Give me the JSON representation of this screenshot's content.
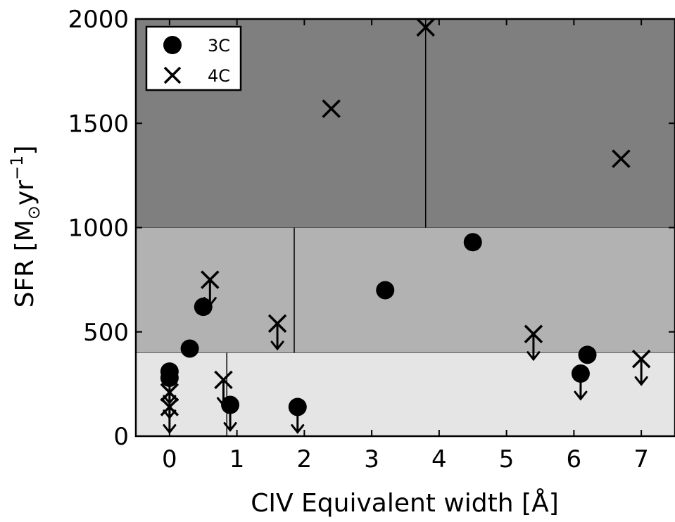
{
  "chart_data": {
    "type": "scatter",
    "xlabel": "CIV Equivalent width [Å]",
    "ylabel": "SFR [M",
    "ylabel_sub": "⊙",
    "ylabel_unit": "yr",
    "ylabel_sup": "−1",
    "ylabel_close": "]",
    "xlim": [
      -0.5,
      7.5
    ],
    "ylim": [
      0,
      2000
    ],
    "xticks": [
      0,
      1,
      2,
      3,
      4,
      5,
      6,
      7
    ],
    "yticks": [
      0,
      500,
      1000,
      1500,
      2000
    ],
    "grid": false,
    "legend_position": "top-left",
    "bands": [
      {
        "y0": 0,
        "y1": 400,
        "color": "#e5e5e5"
      },
      {
        "y0": 400,
        "y1": 1000,
        "color": "#b2b2b2"
      },
      {
        "y0": 1000,
        "y1": 2000,
        "color": "#7f7f7f"
      }
    ],
    "dividers": [
      {
        "x": 0.85,
        "y0": 0,
        "y1": 400
      },
      {
        "x": 1.85,
        "y0": 400,
        "y1": 1000
      },
      {
        "x": 3.8,
        "y0": 1000,
        "y1": 2000
      }
    ],
    "series": [
      {
        "name": "3C",
        "marker": "circle",
        "points": [
          {
            "x": 0.0,
            "y": 310,
            "upper_limit": false
          },
          {
            "x": 0.0,
            "y": 280,
            "upper_limit": true
          },
          {
            "x": 0.3,
            "y": 420,
            "upper_limit": false
          },
          {
            "x": 0.5,
            "y": 620,
            "upper_limit": false
          },
          {
            "x": 0.9,
            "y": 150,
            "upper_limit": true
          },
          {
            "x": 1.9,
            "y": 140,
            "upper_limit": true
          },
          {
            "x": 3.2,
            "y": 700,
            "upper_limit": false
          },
          {
            "x": 4.5,
            "y": 930,
            "upper_limit": false
          },
          {
            "x": 6.1,
            "y": 300,
            "upper_limit": true
          },
          {
            "x": 6.2,
            "y": 390,
            "upper_limit": false
          }
        ]
      },
      {
        "name": "4C",
        "marker": "x",
        "points": [
          {
            "x": 0.0,
            "y": 210,
            "upper_limit": true
          },
          {
            "x": 0.0,
            "y": 140,
            "upper_limit": true
          },
          {
            "x": 0.6,
            "y": 750,
            "upper_limit": true
          },
          {
            "x": 0.8,
            "y": 270,
            "upper_limit": true
          },
          {
            "x": 1.6,
            "y": 540,
            "upper_limit": true
          },
          {
            "x": 2.4,
            "y": 1570,
            "upper_limit": false
          },
          {
            "x": 3.8,
            "y": 1960,
            "upper_limit": false
          },
          {
            "x": 5.4,
            "y": 490,
            "upper_limit": true
          },
          {
            "x": 6.7,
            "y": 1330,
            "upper_limit": false
          },
          {
            "x": 7.0,
            "y": 370,
            "upper_limit": true
          }
        ]
      }
    ]
  }
}
